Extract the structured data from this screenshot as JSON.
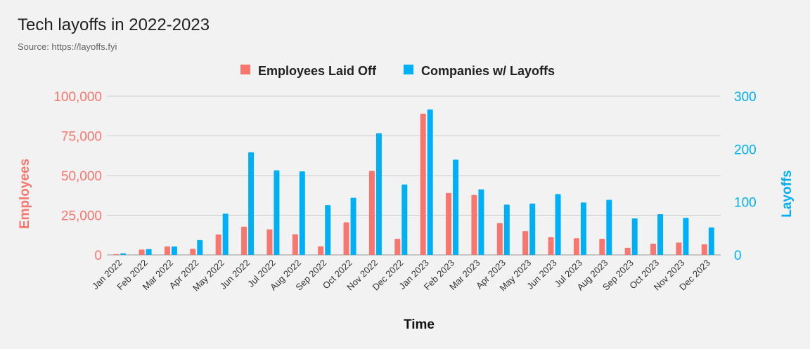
{
  "title": "Tech layoffs in 2022-2023",
  "subtitle": "Source: https://layoffs.fyi",
  "colors": {
    "employees": "#f8766d",
    "companies": "#00b0f6",
    "grid": "#cccccc"
  },
  "chart_data": {
    "type": "bar",
    "categories": [
      "Jan 2022",
      "Feb 2022",
      "Mar 2022",
      "Apr 2022",
      "May 2022",
      "Jun 2022",
      "Jul 2022",
      "Aug 2022",
      "Sep 2022",
      "Oct 2022",
      "Nov 2022",
      "Dec 2022",
      "Jan 2023",
      "Feb 2023",
      "Mar 2023",
      "Apr 2023",
      "May 2023",
      "Jun 2023",
      "Jul 2023",
      "Aug 2023",
      "Sep 2023",
      "Oct 2023",
      "Nov 2023",
      "Dec 2023"
    ],
    "series": [
      {
        "name": "Employees Laid Off",
        "axis": "left",
        "values": [
          500,
          3400,
          5300,
          3800,
          12900,
          17800,
          16100,
          13000,
          5400,
          20500,
          53000,
          10100,
          89000,
          39000,
          37800,
          20100,
          15000,
          11200,
          10500,
          10100,
          4500,
          7100,
          7800,
          6700
        ]
      },
      {
        "name": "Companies w/ Layoffs",
        "axis": "right",
        "values": [
          3,
          11,
          16,
          28,
          78,
          194,
          160,
          158,
          94,
          108,
          230,
          133,
          275,
          180,
          124,
          95,
          97,
          115,
          99,
          104,
          69,
          77,
          70,
          52
        ]
      }
    ],
    "xlabel": "Time",
    "ylabel_left": "Employees",
    "ylabel_right": "Layoffs",
    "ylim_left": [
      0,
      100000
    ],
    "ylim_right": [
      0,
      300
    ],
    "yticks_left": [
      "0",
      "25,000",
      "50,000",
      "75,000",
      "100,000"
    ],
    "yticks_right": [
      "0",
      "100",
      "200",
      "300"
    ],
    "grid": true,
    "legend": "top-center"
  }
}
